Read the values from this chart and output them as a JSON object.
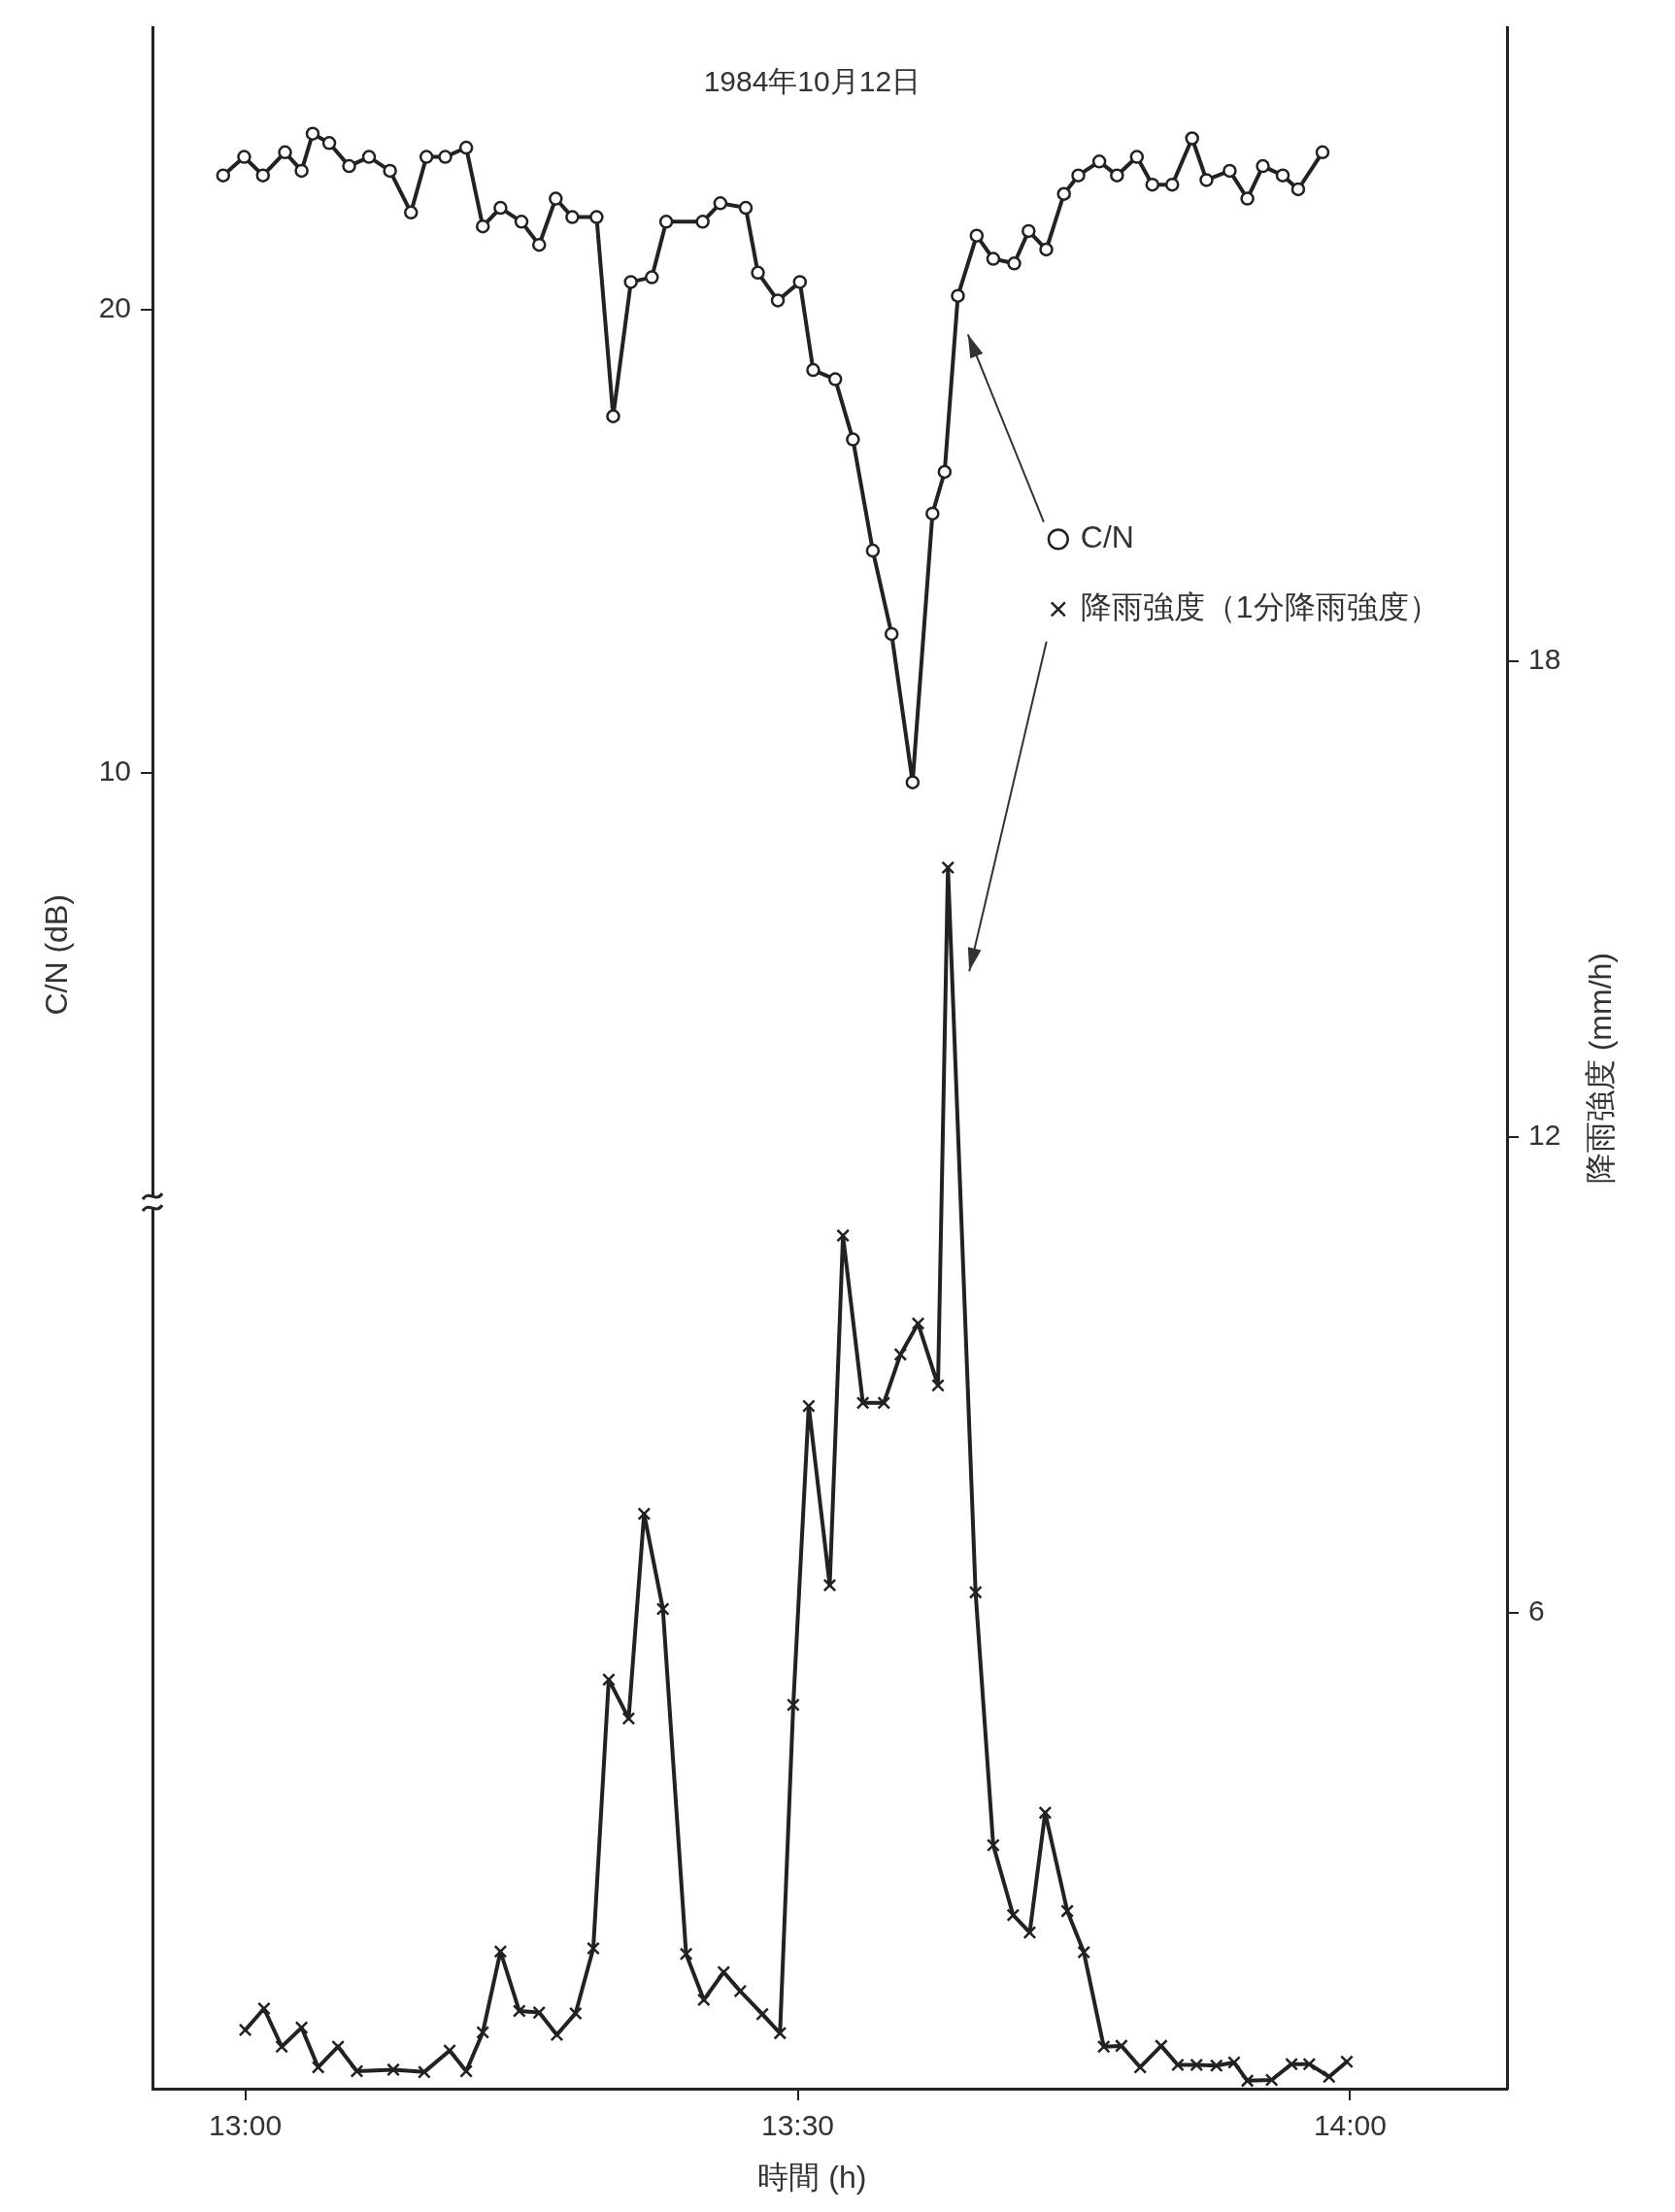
{
  "chart_data": {
    "type": "line",
    "title": "1984年10月12日",
    "xlabel": "時間 (h)",
    "ylabel": "C/N (dB)",
    "y2label": "降雨強度 (mm/h)",
    "xlim": [
      12.916,
      14.142
    ],
    "xticks": [
      {
        "value": 13,
        "label": "13:00"
      },
      {
        "value": 13.5,
        "label": "13:30"
      },
      {
        "value": 14,
        "label": "14:00"
      }
    ],
    "ylim": [
      -18.4,
      26.1
    ],
    "yticks": [
      10,
      20
    ],
    "y2lim": [
      0,
      26
    ],
    "y2ticks": [
      6,
      12,
      18
    ],
    "grid": false,
    "legend": "right",
    "line_style": "solid",
    "series": [
      {
        "name": "C/N",
        "color": "#222222",
        "marker": "circle",
        "x": [
          12.98,
          12.999,
          13.016,
          13.036,
          13.051,
          13.061,
          13.076,
          13.094,
          13.112,
          13.131,
          13.15,
          13.164,
          13.181,
          13.2,
          13.215,
          13.231,
          13.25,
          13.266,
          13.281,
          13.296,
          13.318,
          13.333,
          13.349,
          13.368,
          13.381,
          13.414,
          13.43,
          13.453,
          13.464,
          13.482,
          13.502,
          13.514,
          13.534,
          13.55,
          13.568,
          13.585,
          13.604,
          13.622,
          13.633,
          13.645,
          13.662,
          13.677,
          13.696,
          13.709,
          13.725,
          13.741,
          13.754,
          13.773,
          13.789,
          13.807,
          13.821,
          13.839,
          13.857,
          13.87,
          13.891,
          13.907,
          13.921,
          13.939,
          13.953,
          13.975
        ],
        "values": [
          22.9,
          23.3,
          22.9,
          23.4,
          23.0,
          23.8,
          23.6,
          23.1,
          23.3,
          23.0,
          22.1,
          23.3,
          23.3,
          23.5,
          21.8,
          22.2,
          21.9,
          21.4,
          22.4,
          22.0,
          22.0,
          17.7,
          20.6,
          20.7,
          21.9,
          21.9,
          22.3,
          22.2,
          20.8,
          20.2,
          20.6,
          18.7,
          18.5,
          17.2,
          14.8,
          13.0,
          9.8,
          15.6,
          16.5,
          20.3,
          21.6,
          21.1,
          21.0,
          21.7,
          21.3,
          22.5,
          22.9,
          23.2,
          22.9,
          23.3,
          22.7,
          22.7,
          23.7,
          22.8,
          23.0,
          22.4,
          23.1,
          22.9,
          22.6,
          23.4
        ]
      },
      {
        "name": "降雨強度（1分降雨強度）",
        "color": "#222222",
        "marker": "cross",
        "axis": "y2",
        "x": [
          13.0,
          13.017,
          13.033,
          13.051,
          13.066,
          13.084,
          13.101,
          13.134,
          13.162,
          13.185,
          13.2,
          13.215,
          13.231,
          13.248,
          13.266,
          13.282,
          13.299,
          13.315,
          13.329,
          13.347,
          13.361,
          13.378,
          13.399,
          13.415,
          13.433,
          13.448,
          13.468,
          13.484,
          13.496,
          13.51,
          13.529,
          13.541,
          13.559,
          13.578,
          13.593,
          13.609,
          13.627,
          13.636,
          13.661,
          13.677,
          13.695,
          13.71,
          13.724,
          13.744,
          13.759,
          13.777,
          13.793,
          13.81,
          13.829,
          13.844,
          13.861,
          13.879,
          13.895,
          13.907,
          13.929,
          13.947,
          13.963,
          13.981,
          13.997
        ],
        "values": [
          0.74,
          1.01,
          0.53,
          0.77,
          0.27,
          0.53,
          0.22,
          0.24,
          0.21,
          0.48,
          0.22,
          0.71,
          1.73,
          0.98,
          0.96,
          0.68,
          0.95,
          1.77,
          5.16,
          4.67,
          7.25,
          6.05,
          1.7,
          1.12,
          1.47,
          1.23,
          0.94,
          0.7,
          4.84,
          8.61,
          6.35,
          10.76,
          8.65,
          8.65,
          9.26,
          9.65,
          8.87,
          15.4,
          6.26,
          3.07,
          2.19,
          1.97,
          3.48,
          2.24,
          1.72,
          0.53,
          0.54,
          0.27,
          0.54,
          0.3,
          0.3,
          0.29,
          0.33,
          0.1,
          0.11,
          0.31,
          0.31,
          0.15,
          0.34
        ]
      }
    ]
  }
}
